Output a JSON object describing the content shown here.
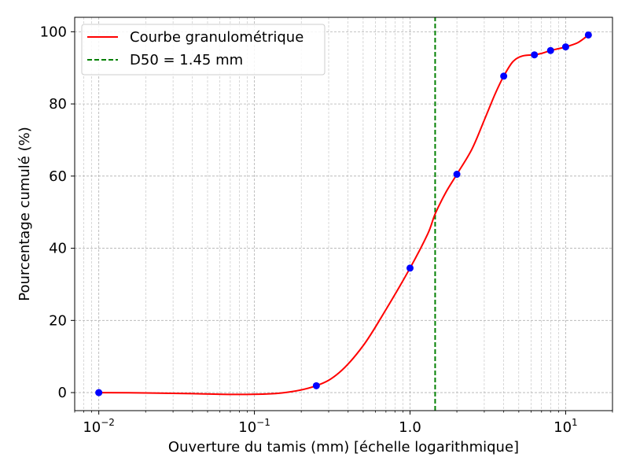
{
  "chart_data": {
    "type": "line",
    "xscale": "log",
    "xlim": [
      0.007,
      20
    ],
    "ylim": [
      -5,
      104
    ],
    "xlabel": "Ouverture du tamis (mm) [échelle logarithmique]",
    "ylabel": "Pourcentage cumulé (%)",
    "grid": true,
    "legend_position": "top-left",
    "x_ticks": [
      {
        "value": 0.01,
        "base": "10",
        "exp": "−2"
      },
      {
        "value": 0.1,
        "base": "10",
        "exp": "−1"
      },
      {
        "value": 1,
        "base": "1.0",
        "exp": ""
      },
      {
        "value": 10,
        "base": "10",
        "exp": "1"
      }
    ],
    "y_ticks": [
      0,
      20,
      40,
      60,
      80,
      100
    ],
    "points": {
      "color": "#0000ff",
      "x": [
        0.01,
        0.25,
        1,
        2,
        4,
        6.3,
        8,
        10,
        14
      ],
      "y": [
        0,
        1.9,
        34.5,
        60.5,
        87.7,
        93.6,
        94.8,
        95.8,
        99.1
      ]
    },
    "series": [
      {
        "name": "Courbe granulométrique",
        "color": "#ff0000",
        "style": "solid",
        "x": [
          0.01,
          0.02,
          0.04,
          0.08,
          0.15,
          0.25,
          0.35,
          0.5,
          0.7,
          1,
          1.3,
          1.45,
          1.7,
          2,
          2.5,
          3,
          3.5,
          4,
          4.6,
          5.3,
          6.3,
          7,
          8,
          9,
          10,
          12,
          14
        ],
        "y": [
          0,
          -0.1,
          -0.3,
          -0.5,
          -0.1,
          1.9,
          5.5,
          13,
          23,
          34.5,
          44,
          49.5,
          55.5,
          60.5,
          67.5,
          75.5,
          82.5,
          87.7,
          91.8,
          93.3,
          93.6,
          94,
          94.8,
          95.3,
          95.8,
          97,
          99.1
        ]
      },
      {
        "name": "D50 = 1.45 mm",
        "color": "#008000",
        "style": "dashed",
        "x": [
          1.45,
          1.45
        ],
        "y": [
          -5,
          104
        ]
      }
    ]
  }
}
